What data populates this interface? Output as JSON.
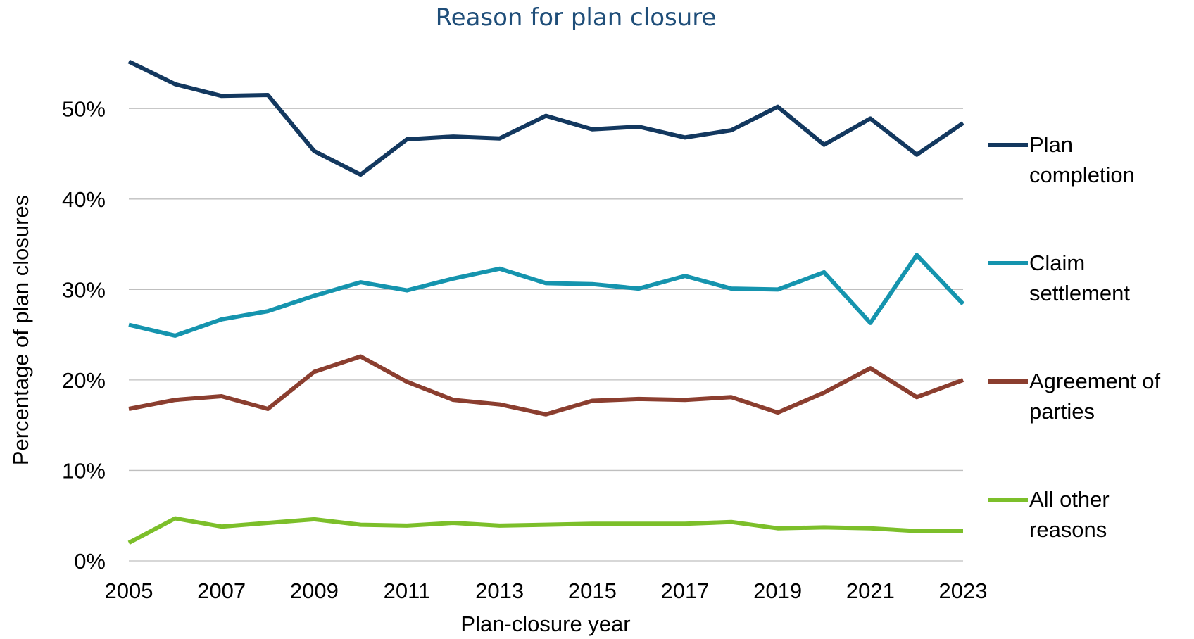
{
  "chart_data": {
    "type": "line",
    "title": "Reason for plan closure",
    "xlabel": "Plan-closure year",
    "ylabel": "Percentage of plan closures",
    "x": [
      2005,
      2006,
      2007,
      2008,
      2009,
      2010,
      2011,
      2012,
      2013,
      2014,
      2015,
      2016,
      2017,
      2018,
      2019,
      2020,
      2021,
      2022,
      2023
    ],
    "x_tick_labels": [
      "2005",
      "2007",
      "2009",
      "2011",
      "2013",
      "2015",
      "2017",
      "2019",
      "2021",
      "2023"
    ],
    "y_tick_labels": [
      "0%",
      "10%",
      "20%",
      "30%",
      "40%",
      "50%"
    ],
    "ylim": [
      0,
      55
    ],
    "grid": true,
    "legend_position": "right",
    "series": [
      {
        "name": "Plan completion",
        "label_lines": [
          "Plan",
          "completion"
        ],
        "color": "#13385F",
        "values": [
          55.2,
          52.7,
          51.4,
          51.5,
          45.3,
          42.7,
          46.6,
          46.9,
          46.7,
          49.2,
          47.7,
          48.0,
          46.8,
          47.6,
          50.2,
          46.0,
          48.9,
          44.9,
          48.4
        ]
      },
      {
        "name": "Claim settlement",
        "label_lines": [
          "Claim",
          "settlement"
        ],
        "color": "#1594AE",
        "values": [
          26.1,
          24.9,
          26.7,
          27.6,
          29.3,
          30.8,
          29.9,
          31.2,
          32.3,
          30.7,
          30.6,
          30.1,
          31.5,
          30.1,
          30.0,
          31.9,
          26.3,
          33.8,
          28.4
        ]
      },
      {
        "name": "Agreement of parties",
        "label_lines": [
          "Agreement of",
          "parties"
        ],
        "color": "#8B3E2F",
        "values": [
          16.8,
          17.8,
          18.2,
          16.8,
          20.9,
          22.6,
          19.8,
          17.8,
          17.3,
          16.2,
          17.7,
          17.9,
          17.8,
          18.1,
          16.4,
          18.6,
          21.3,
          18.1,
          20.0
        ]
      },
      {
        "name": "All other reasons",
        "label_lines": [
          "All other",
          "reasons"
        ],
        "color": "#7CBF2A",
        "values": [
          2.0,
          4.7,
          3.8,
          4.2,
          4.6,
          4.0,
          3.9,
          4.2,
          3.9,
          4.0,
          4.1,
          4.1,
          4.1,
          4.3,
          3.6,
          3.7,
          3.6,
          3.3,
          3.3
        ]
      }
    ]
  }
}
